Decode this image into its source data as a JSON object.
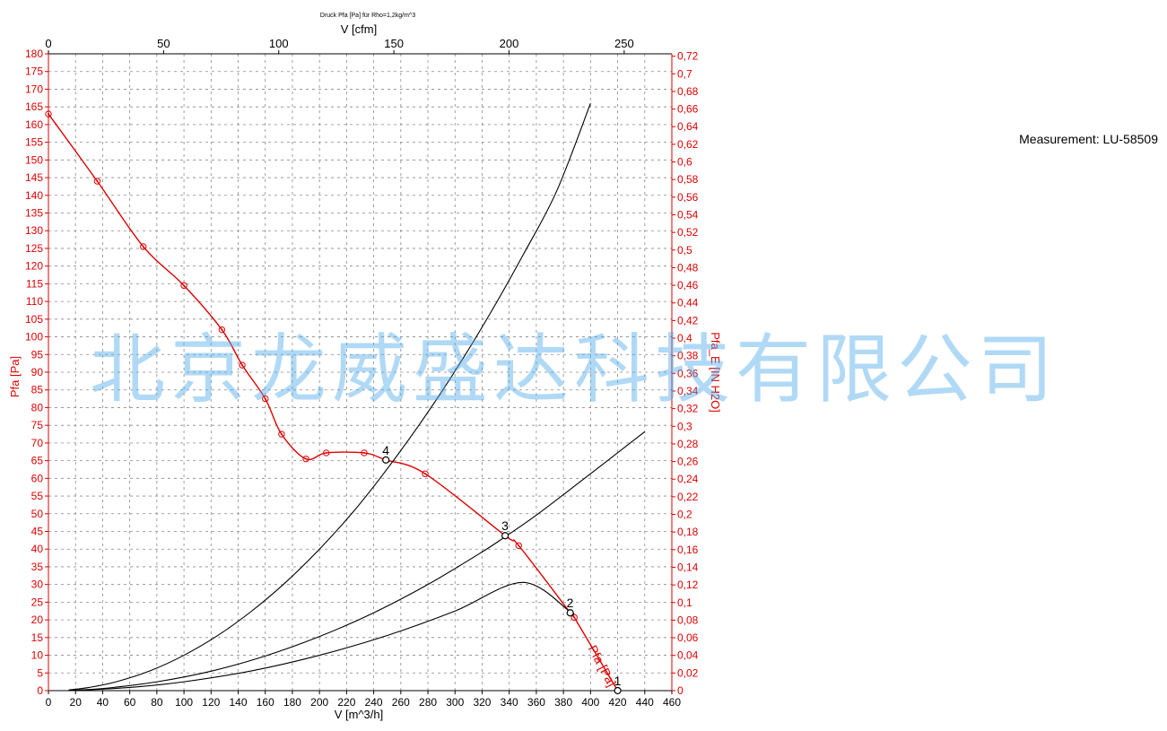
{
  "chart_data": {
    "type": "line",
    "title": "Druck Pfa [Pa] für Rho=1,2kg/m^3",
    "x_label": "V [m^3/h]",
    "x2_label": "V [cfm]",
    "y_label": "Pfa [Pa]",
    "y2_label": "Pfa_E [IN H2O]",
    "xlim": [
      0,
      460
    ],
    "ylim": [
      0,
      180
    ],
    "x2lim": [
      0,
      270.7
    ],
    "y2lim": [
      0,
      0.7227
    ],
    "x_ticks": [
      "0",
      "20",
      "40",
      "60",
      "80",
      "100",
      "120",
      "140",
      "160",
      "180",
      "200",
      "220",
      "240",
      "260",
      "280",
      "300",
      "320",
      "340",
      "360",
      "380",
      "400",
      "420",
      "440",
      "460"
    ],
    "y_ticks": [
      "0",
      "5",
      "10",
      "15",
      "20",
      "25",
      "30",
      "35",
      "40",
      "45",
      "50",
      "55",
      "60",
      "65",
      "70",
      "75",
      "80",
      "85",
      "90",
      "95",
      "100",
      "105",
      "110",
      "115",
      "120",
      "125",
      "130",
      "135",
      "140",
      "145",
      "150",
      "155",
      "160",
      "165",
      "170",
      "175",
      "180"
    ],
    "x2_ticks": [
      "0",
      "50",
      "100",
      "150",
      "200",
      "250"
    ],
    "y2_ticks": [
      "0",
      "0,02",
      "0,04",
      "0,06",
      "0,08",
      "0,1",
      "0,12",
      "0,14",
      "0,16",
      "0,18",
      "0,2",
      "0,22",
      "0,24",
      "0,26",
      "0,28",
      "0,3",
      "0,32",
      "0,34",
      "0,36",
      "0,38",
      "0,4",
      "0,42",
      "0,44",
      "0,46",
      "0,48",
      "0,5",
      "0,52",
      "0,54",
      "0,56",
      "0,58",
      "0,6",
      "0,62",
      "0,64",
      "0,66",
      "0,68",
      "0,7",
      "0,72"
    ],
    "grid": true,
    "series": [
      {
        "name": "Pfa [Pa]",
        "color": "#e00000",
        "points": [
          [
            0,
            163
          ],
          [
            36,
            144
          ],
          [
            70,
            125.5
          ],
          [
            100,
            114.5
          ],
          [
            128,
            102
          ],
          [
            143,
            92
          ],
          [
            160,
            82.5
          ],
          [
            172,
            72.5
          ],
          [
            190,
            65.5
          ],
          [
            205,
            67.2
          ],
          [
            233,
            67.2
          ],
          [
            249,
            65.2
          ],
          [
            278,
            61.3
          ],
          [
            337,
            43.8
          ],
          [
            347,
            41
          ],
          [
            385,
            22
          ],
          [
            388,
            20.7
          ],
          [
            420,
            0
          ]
        ],
        "markers": [
          [
            0,
            163
          ],
          [
            36,
            144
          ],
          [
            70,
            125.5
          ],
          [
            100,
            114.5
          ],
          [
            128,
            102
          ],
          [
            143,
            92
          ],
          [
            160,
            82.5
          ],
          [
            172,
            72.5
          ],
          [
            190,
            65.5
          ],
          [
            205,
            67.2
          ],
          [
            233,
            67.2
          ],
          [
            278,
            61.3
          ],
          [
            347,
            41
          ],
          [
            388,
            20.7
          ]
        ]
      },
      {
        "name": "",
        "color": "#000000",
        "points": [
          [
            15,
            0.2
          ],
          [
            30,
            0.9
          ],
          [
            50,
            2.5
          ],
          [
            75,
            5.6
          ],
          [
            100,
            10
          ],
          [
            125,
            15.6
          ],
          [
            150,
            22.5
          ],
          [
            175,
            30.6
          ],
          [
            200,
            40
          ],
          [
            225,
            50.6
          ],
          [
            249,
            62.2
          ],
          [
            275,
            75.9
          ],
          [
            300,
            90.3
          ],
          [
            325,
            106
          ],
          [
            350,
            123
          ],
          [
            375,
            141.2
          ],
          [
            400,
            166
          ]
        ]
      },
      {
        "name": "",
        "color": "#000000",
        "points": [
          [
            15,
            0.1
          ],
          [
            40,
            0.6
          ],
          [
            80,
            2.5
          ],
          [
            120,
            5.5
          ],
          [
            160,
            9.8
          ],
          [
            200,
            15.3
          ],
          [
            240,
            22
          ],
          [
            280,
            30
          ],
          [
            320,
            39.2
          ],
          [
            337,
            43.5
          ],
          [
            360,
            49.6
          ],
          [
            400,
            61.3
          ],
          [
            440,
            73.2
          ]
        ]
      },
      {
        "name": "",
        "color": "#000000",
        "points": [
          [
            15,
            0
          ],
          [
            60,
            0.9
          ],
          [
            100,
            2.5
          ],
          [
            150,
            5.6
          ],
          [
            200,
            10
          ],
          [
            250,
            15.6
          ],
          [
            300,
            22.5
          ],
          [
            350,
            30.6
          ],
          [
            385,
            22.3
          ],
          [
            386,
            22.2
          ]
        ]
      }
    ],
    "operating_points": [
      {
        "label": "1",
        "x": 420,
        "y": 0
      },
      {
        "label": "2",
        "x": 385,
        "y": 22
      },
      {
        "label": "3",
        "x": 337,
        "y": 43.8
      },
      {
        "label": "4",
        "x": 249,
        "y": 65.2
      }
    ],
    "red_curve_label": "Pfa [Pa]"
  },
  "measurement_label": "Measurement: LU-58509",
  "watermark": "北京龙威盛达科技有限公司"
}
